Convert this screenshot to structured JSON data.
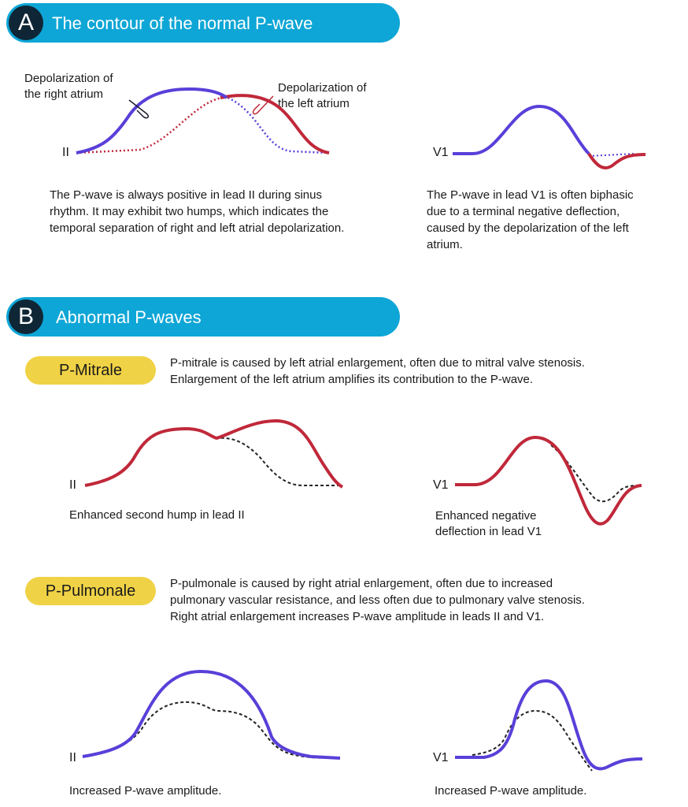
{
  "section_a": {
    "letter": "A",
    "title": "The contour of the normal P-wave",
    "label_right_atrium": [
      "Depolarization of",
      "the right atrium"
    ],
    "label_left_atrium": [
      "Depolarization of",
      "the left atrium"
    ],
    "lead_ii": "II",
    "lead_v1": "V1",
    "desc_ii": [
      "The P-wave is always positive in lead II during sinus",
      "rhythm. It may exhibit two humps, which indicates the",
      "temporal separation of right and left atrial depolarization."
    ],
    "desc_v1": [
      "The P-wave in lead V1 is often biphasic",
      "due to a terminal negative deflection,",
      "caused by the depolarization of the left",
      "atrium."
    ]
  },
  "section_b": {
    "letter": "B",
    "title": "Abnormal P-waves",
    "mitrale": {
      "pill": "P-Mitrale",
      "desc": [
        "P-mitrale is caused by left atrial enlargement, often due to mitral valve stenosis.",
        "Enlargement of the left atrium amplifies its contribution to the P-wave."
      ],
      "lead_ii": "II",
      "lead_v1": "V1",
      "caption_ii": "Enhanced second hump in lead II",
      "caption_v1": [
        "Enhanced negative",
        "deflection in lead V1"
      ]
    },
    "pulmonale": {
      "pill": "P-Pulmonale",
      "desc": [
        "P-pulmonale is caused by right atrial enlargement, often due to increased",
        "pulmonary vascular resistance, and less often due to pulmonary valve stenosis.",
        "Right atrial enlargement increases P-wave amplitude in leads II and V1."
      ],
      "lead_ii": "II",
      "lead_v1": "V1",
      "caption_ii": "Increased P-wave amplitude.",
      "caption_v1": "Increased P-wave amplitude."
    }
  },
  "colors": {
    "right_atrium": "#5a3fd9",
    "left_atrium": "#c0283a",
    "normal_reference": "#222222",
    "banner": "#0ea6d6",
    "badge": "#0f2636",
    "pill": "#f0d246"
  }
}
